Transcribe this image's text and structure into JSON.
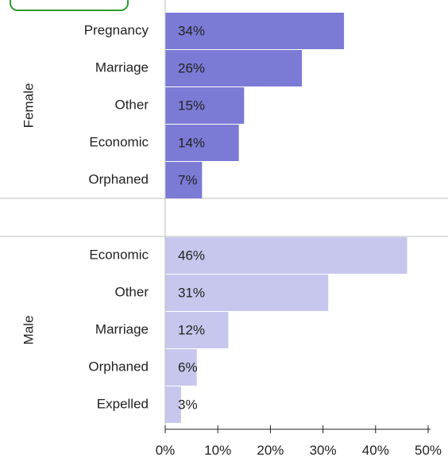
{
  "chart_data": {
    "type": "bar",
    "orientation": "horizontal",
    "groups": [
      {
        "label": "Female",
        "color": "#7b7bd6",
        "categories": [
          "Pregnancy",
          "Marriage",
          "Other",
          "Economic",
          "Orphaned"
        ],
        "values": [
          34,
          26,
          15,
          14,
          7
        ],
        "labels": [
          "34%",
          "26%",
          "15%",
          "14%",
          "7%"
        ]
      },
      {
        "label": "Male",
        "color": "#c7c7ee",
        "categories": [
          "Economic",
          "Other",
          "Marriage",
          "Orphaned",
          "Expelled"
        ],
        "values": [
          46,
          31,
          12,
          6,
          3
        ],
        "labels": [
          "46%",
          "31%",
          "12%",
          "6%",
          "3%"
        ]
      }
    ],
    "xlim": [
      0,
      50
    ],
    "xticks": [
      0,
      10,
      20,
      30,
      40,
      50
    ],
    "xtick_labels": [
      "0%",
      "10%",
      "20%",
      "30%",
      "40%",
      "50%"
    ],
    "grid": false,
    "accent_tab_color": "#2e9e2e"
  }
}
